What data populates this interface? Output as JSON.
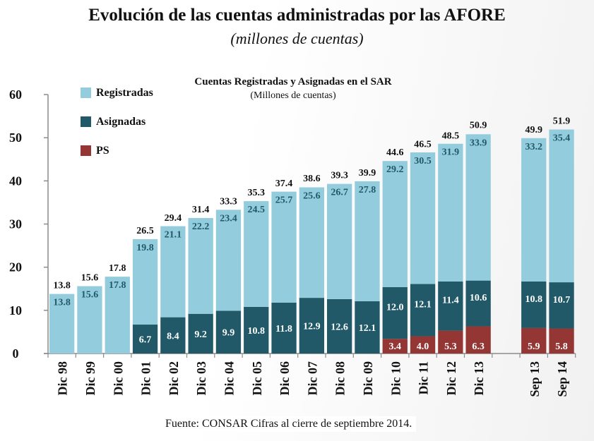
{
  "header": {
    "title": "Evolución  de las cuentas administradas por las AFORE",
    "subtitle": "(millones de cuentas)"
  },
  "footer": {
    "source": "Fuente: CONSAR Cifras al cierre de septiembre 2014."
  },
  "chart_data": {
    "type": "bar",
    "stacked": true,
    "title": "Cuentas Registradas y Asignadas en el SAR",
    "subtitle": "(Millones de cuentas)",
    "xlabel": "",
    "ylabel": "",
    "ylim": [
      0,
      60
    ],
    "yticks": [
      0,
      10,
      20,
      30,
      40,
      50,
      60
    ],
    "grid": false,
    "legend_position": "top-left",
    "categories": [
      "Dic 98",
      "Dic 99",
      "Dic 00",
      "Dic 01",
      "Dic 02",
      "Dic 03",
      "Dic 04",
      "Dic 05",
      "Dic 06",
      "Dic 07",
      "Dic 08",
      "Dic 09",
      "Dic 10",
      "Dic 11",
      "Dic 12",
      "Dic 13",
      "Sep 13",
      "Sep 14"
    ],
    "gap_before_index": 16,
    "series": [
      {
        "name": "PS",
        "color": "#943634",
        "label_color": "#ffffff",
        "values": [
          0,
          0,
          0,
          0,
          0,
          0,
          0,
          0,
          0,
          0,
          0,
          0,
          3.4,
          4.0,
          5.3,
          6.3,
          5.9,
          5.8
        ],
        "labels": [
          null,
          null,
          null,
          null,
          null,
          null,
          null,
          null,
          null,
          null,
          null,
          null,
          "3.4",
          "4.0",
          "5.3",
          "6.3",
          "5.9",
          "5.8"
        ]
      },
      {
        "name": "Asignadas",
        "color": "#215968",
        "label_color": "#ffffff",
        "values": [
          0,
          0,
          0,
          6.7,
          8.4,
          9.2,
          9.9,
          10.8,
          11.8,
          12.9,
          12.6,
          12.1,
          12.0,
          12.1,
          11.4,
          10.6,
          10.8,
          10.7
        ],
        "labels": [
          null,
          null,
          null,
          "6.7",
          "8.4",
          "9.2",
          "9.9",
          "10.8",
          "11.8",
          "12.9",
          "12.6",
          "12.1",
          "12.0",
          "12.1",
          "11.4",
          "10.6",
          "10.8",
          "10.7"
        ]
      },
      {
        "name": "Registradas",
        "color": "#93CDDD",
        "label_color": "#215968",
        "values": [
          13.8,
          15.6,
          17.8,
          19.8,
          21.1,
          22.2,
          23.4,
          24.5,
          25.7,
          25.6,
          26.7,
          27.8,
          29.2,
          30.5,
          31.9,
          33.9,
          33.2,
          35.4
        ],
        "labels": [
          "13.8",
          "15.6",
          "17.8",
          "19.8",
          "21.1",
          "22.2",
          "23.4",
          "24.5",
          "25.7",
          "25.6",
          "26.7",
          "27.8",
          "29.2",
          "30.5",
          "31.9",
          "33.9",
          "33.2",
          "35.4"
        ]
      }
    ],
    "totals": [
      13.8,
      15.6,
      17.8,
      26.5,
      29.4,
      31.4,
      33.3,
      35.3,
      37.4,
      38.6,
      39.3,
      39.9,
      44.6,
      46.5,
      48.5,
      50.9,
      49.9,
      51.9
    ],
    "total_labels": [
      "13.8",
      "15.6",
      "17.8",
      "26.5",
      "29.4",
      "31.4",
      "33.3",
      "35.3",
      "37.4",
      "38.6",
      "39.3",
      "39.9",
      "44.6",
      "46.5",
      "48.5",
      "50.9",
      "49.9",
      "51.9"
    ],
    "legend": [
      {
        "name": "Registradas",
        "color": "#93CDDD"
      },
      {
        "name": "Asignadas",
        "color": "#215968"
      },
      {
        "name": "PS",
        "color": "#943634"
      }
    ]
  }
}
